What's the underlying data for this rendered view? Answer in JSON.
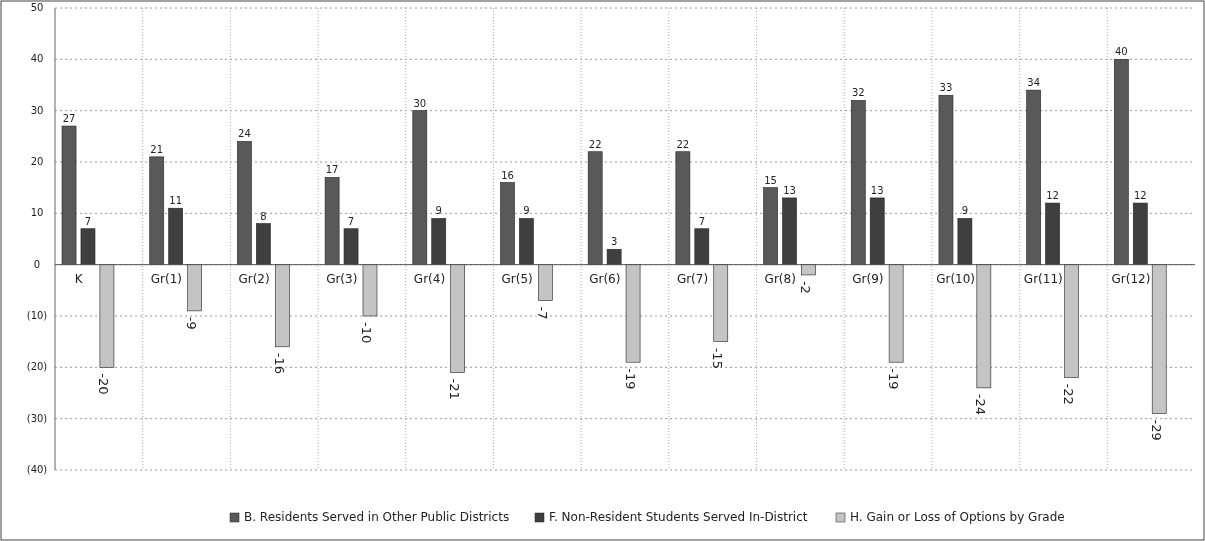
{
  "chart_data": {
    "type": "bar",
    "categories": [
      "K",
      "Gr(1)",
      "Gr(2)",
      "Gr(3)",
      "Gr(4)",
      "Gr(5)",
      "Gr(6)",
      "Gr(7)",
      "Gr(8)",
      "Gr(9)",
      "Gr(10)",
      "Gr(11)",
      "Gr(12)"
    ],
    "series": [
      {
        "name": "B.  Residents Served in Other Public Districts",
        "color": "#595959",
        "values": [
          27,
          21,
          24,
          17,
          30,
          16,
          22,
          22,
          15,
          32,
          33,
          34,
          40
        ]
      },
      {
        "name": "F.  Non-Resident Students Served In-District",
        "color": "#3f3f3f",
        "values": [
          7,
          11,
          8,
          7,
          9,
          9,
          3,
          7,
          13,
          13,
          9,
          12,
          12
        ]
      },
      {
        "name": "H.  Gain or Loss of Options by Grade",
        "color": "#c4c4c4",
        "values": [
          -20,
          -9,
          -16,
          -10,
          -21,
          -7,
          -19,
          -15,
          -2,
          -19,
          -24,
          -22,
          -29
        ]
      }
    ],
    "ylim": [
      -40,
      50
    ],
    "yticks": [
      {
        "value": -40,
        "label": "(40)"
      },
      {
        "value": -30,
        "label": "(30)"
      },
      {
        "value": -20,
        "label": "(20)"
      },
      {
        "value": -10,
        "label": "(10)"
      },
      0,
      10,
      20,
      30,
      40,
      50
    ],
    "grid": true,
    "legend": "bottom",
    "data_labels": true
  }
}
